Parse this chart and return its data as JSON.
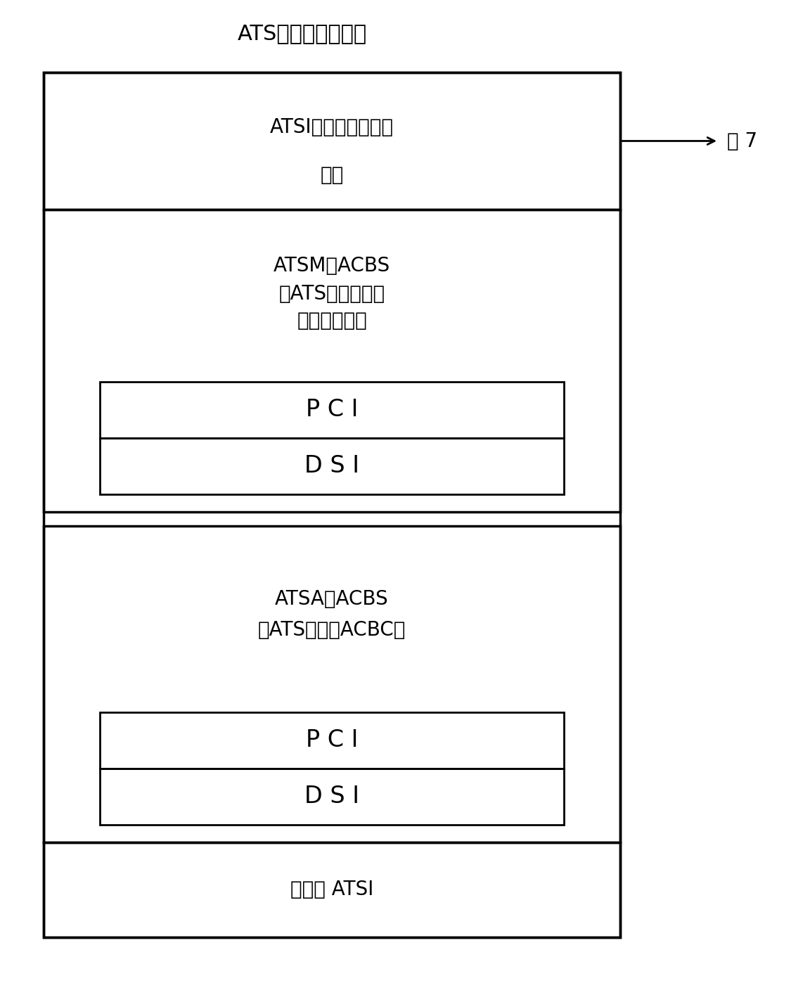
{
  "title": "ATS（音频标题组）",
  "fig7_label": "图 7",
  "background_color": "#ffffff",
  "line_color": "#000000",
  "text_color": "#000000",
  "atsi_label_line1": "ATSI（音频标题组信",
  "atsi_label_line2": "息）",
  "atsm_label_line1": "ATSM－ACBS",
  "atsm_label_line2": "（ATS菜单用音频",
  "atsm_label_line3": "目录块设置）",
  "atsa_label_line1": "ATSA－ACBS",
  "atsa_label_line2": "（ATS相册－ACBC）",
  "backup_label": "备份用 ATSI",
  "pci_label": "P C I",
  "dsi_label": "D S I",
  "outer_lw": 2.5,
  "inner_lw": 2.0,
  "title_fontsize": 22,
  "block_fontsize": 20,
  "pci_dsi_fontsize": 24,
  "fig7_fontsize": 20
}
